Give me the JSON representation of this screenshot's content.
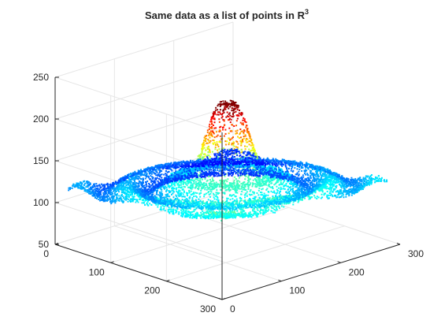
{
  "chart_data": {
    "type": "scatter3d",
    "title": "Same data as a list of points in R",
    "title_superscript": "3",
    "xlabel": "",
    "ylabel": "",
    "zlabel": "",
    "x_ticks": [
      "0",
      "100",
      "200",
      "300"
    ],
    "y_ticks": [
      "0",
      "100",
      "200",
      "300"
    ],
    "z_ticks": [
      "50",
      "100",
      "150",
      "200",
      "250"
    ],
    "xlim": [
      0,
      300
    ],
    "ylim": [
      0,
      300
    ],
    "zlim": [
      50,
      250
    ],
    "grid": true,
    "box": true,
    "colormap": "jet",
    "surface": {
      "description_values": "scattered points on a flat plane near z=120 with ripples, and a Gaussian-like peak near the center",
      "base_level": 120,
      "peak_height": 215,
      "peak_center": [
        150,
        150
      ],
      "x_extent": [
        10,
        290
      ],
      "y_extent": [
        10,
        290
      ]
    }
  },
  "colors": {
    "axis": "#262626",
    "grid": "#e6e6e6",
    "background": "#ffffff"
  }
}
